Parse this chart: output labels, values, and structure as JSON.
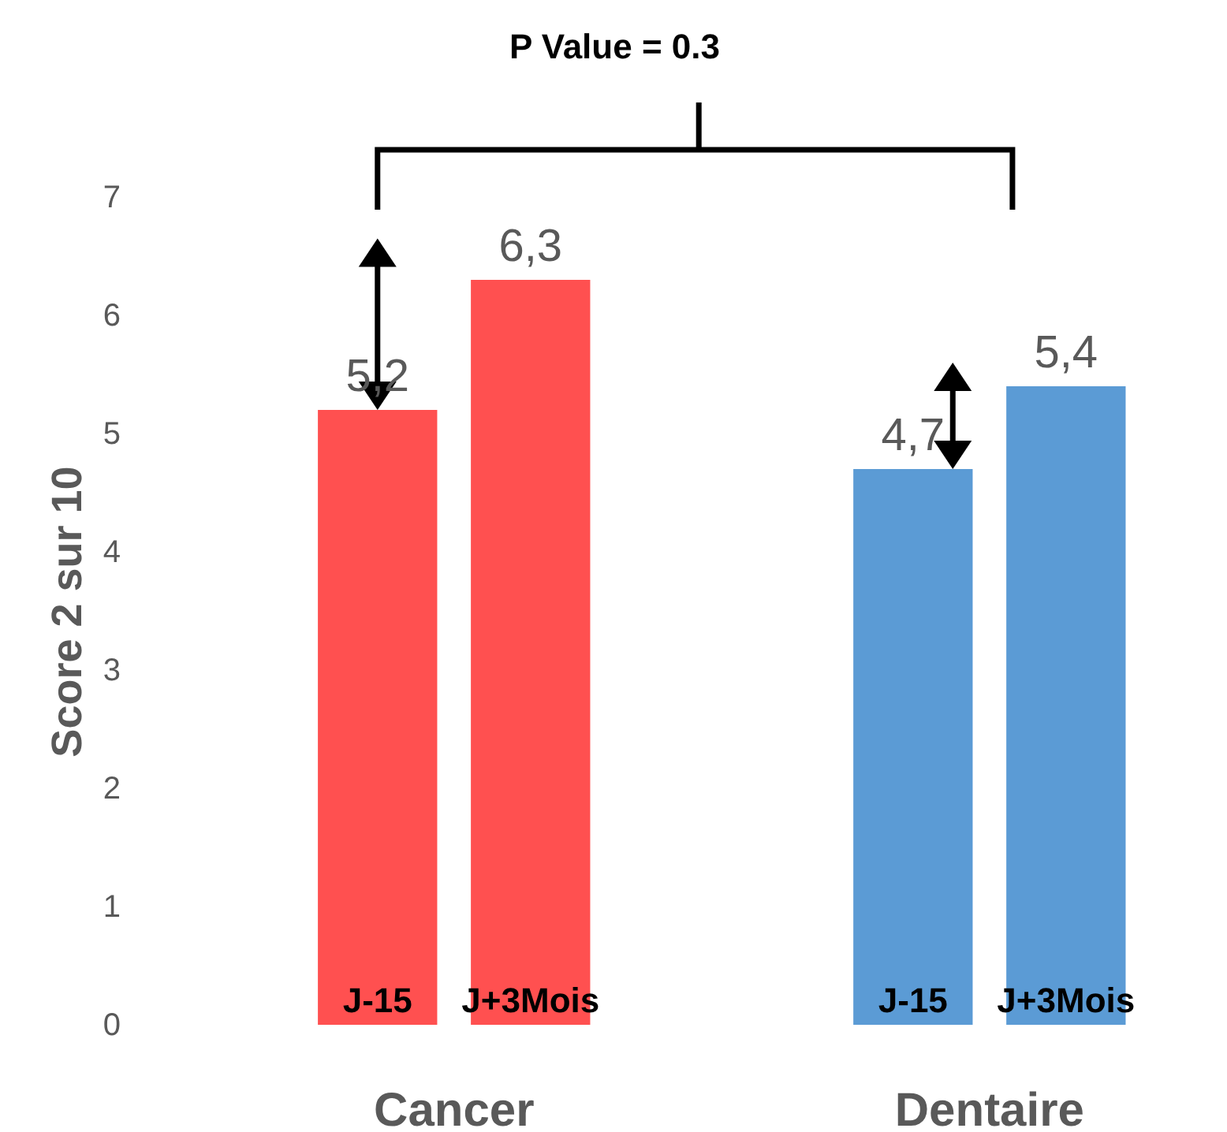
{
  "chart_data": {
    "type": "bar",
    "categories": [
      "J-15",
      "J+3Mois",
      "J-15",
      "J+3Mois"
    ],
    "values": [
      5.2,
      6.3,
      4.7,
      5.4
    ],
    "colors": [
      "#ff5050",
      "#ff5050",
      "#5b9bd5",
      "#5b9bd5"
    ],
    "value_labels": [
      "5,2",
      "6,3",
      "4,7",
      "5,4"
    ],
    "ylabel": "Score 2 sur  10",
    "ylim": [
      0,
      7
    ],
    "yticks": [
      0,
      1,
      2,
      3,
      4,
      5,
      6,
      7
    ],
    "annotations": [
      "P Value = 0.3",
      "Cancer",
      "Dentaire"
    ],
    "grid": false
  }
}
